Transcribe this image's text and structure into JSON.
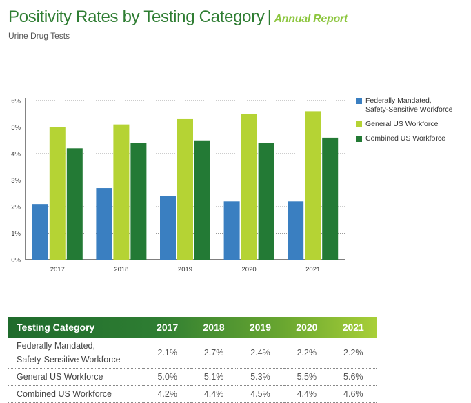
{
  "header": {
    "title": "Positivity Rates by Testing Category",
    "separator": "|",
    "report_label": "Annual Report",
    "subtitle": "Urine Drug Tests"
  },
  "colors": {
    "federal": "#3a7fc1",
    "general": "#b5d334",
    "combined": "#237a35",
    "title": "#2e7d32"
  },
  "chart_data": {
    "type": "bar",
    "categories": [
      "2017",
      "2018",
      "2019",
      "2020",
      "2021"
    ],
    "series": [
      {
        "name": "Federally Mandated, Safety-Sensitive Workforce",
        "name_lines": [
          "Federally Mandated,",
          "Safety-Sensitive Workforce"
        ],
        "values": [
          2.1,
          2.7,
          2.4,
          2.2,
          2.2
        ]
      },
      {
        "name": "General US Workforce",
        "name_lines": [
          "General US Workforce"
        ],
        "values": [
          5.0,
          5.1,
          5.3,
          5.5,
          5.6
        ]
      },
      {
        "name": "Combined US Workforce",
        "name_lines": [
          "Combined US Workforce"
        ],
        "values": [
          4.2,
          4.4,
          4.5,
          4.4,
          4.6
        ]
      }
    ],
    "yticks": [
      "0%",
      "1%",
      "2%",
      "3%",
      "4%",
      "5%",
      "6%"
    ],
    "ylim": [
      0,
      6
    ],
    "grid": true,
    "legend_position": "right"
  },
  "table": {
    "header": [
      "Testing Category",
      "2017",
      "2018",
      "2019",
      "2020",
      "2021"
    ],
    "rows": [
      {
        "category_lines": [
          "Federally Mandated,",
          "Safety-Sensitive Workforce"
        ],
        "values": [
          "2.1%",
          "2.7%",
          "2.4%",
          "2.2%",
          "2.2%"
        ]
      },
      {
        "category_lines": [
          "General US Workforce"
        ],
        "values": [
          "5.0%",
          "5.1%",
          "5.3%",
          "5.5%",
          "5.6%"
        ]
      },
      {
        "category_lines": [
          "Combined US Workforce"
        ],
        "values": [
          "4.2%",
          "4.4%",
          "4.5%",
          "4.4%",
          "4.6%"
        ]
      }
    ]
  }
}
